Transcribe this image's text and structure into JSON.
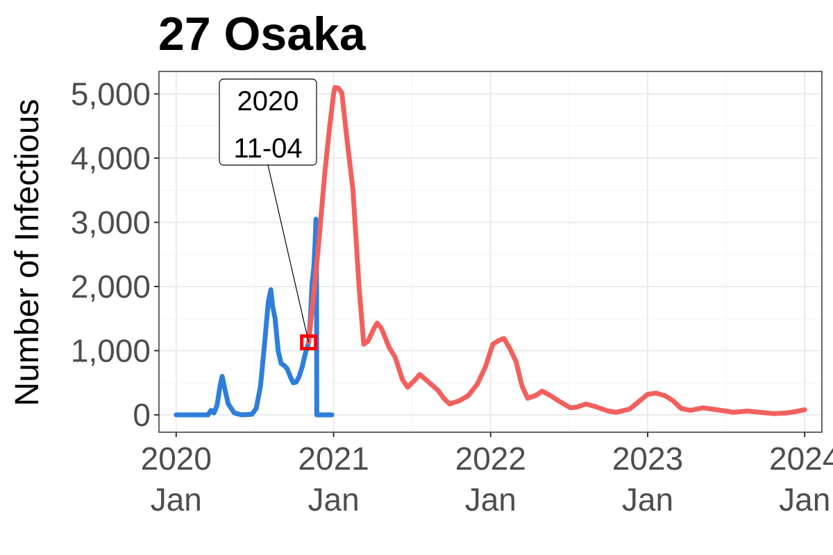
{
  "chart_data": {
    "type": "line",
    "title": "27 Osaka",
    "xlabel": "",
    "ylabel": "Number of Infectious",
    "x_axis_type": "date",
    "xlim": [
      "2019-11-22",
      "2024-02-10"
    ],
    "ylim": [
      -270,
      5350
    ],
    "y_ticks": [
      0,
      1000,
      2000,
      3000,
      4000,
      5000
    ],
    "y_tick_labels": [
      "0",
      "1,000",
      "2,000",
      "3,000",
      "4,000",
      "5,000"
    ],
    "x_ticks": [
      "2020-01-01",
      "2021-01-01",
      "2022-01-01",
      "2023-01-01",
      "2024-01-01"
    ],
    "x_tick_labels": [
      [
        "2020",
        "Jan"
      ],
      [
        "2021",
        "Jan"
      ],
      [
        "2022",
        "Jan"
      ],
      [
        "2023",
        "Jan"
      ],
      [
        "2024",
        "Jan"
      ]
    ],
    "grid": true,
    "legend": "none",
    "series": [
      {
        "color": "#2e7fdc",
        "points": [
          [
            "2020-01-01",
            0
          ],
          [
            "2020-03-15",
            0
          ],
          [
            "2020-03-22",
            70
          ],
          [
            "2020-03-29",
            30
          ],
          [
            "2020-04-05",
            150
          ],
          [
            "2020-04-12",
            450
          ],
          [
            "2020-04-17",
            600
          ],
          [
            "2020-04-22",
            440
          ],
          [
            "2020-05-01",
            170
          ],
          [
            "2020-05-15",
            30
          ],
          [
            "2020-06-01",
            0
          ],
          [
            "2020-06-25",
            10
          ],
          [
            "2020-07-05",
            100
          ],
          [
            "2020-07-15",
            450
          ],
          [
            "2020-07-25",
            1150
          ],
          [
            "2020-08-02",
            1750
          ],
          [
            "2020-08-08",
            1950
          ],
          [
            "2020-08-12",
            1700
          ],
          [
            "2020-08-18",
            1500
          ],
          [
            "2020-08-25",
            1000
          ],
          [
            "2020-09-01",
            800
          ],
          [
            "2020-09-08",
            770
          ],
          [
            "2020-09-15",
            720
          ],
          [
            "2020-09-22",
            600
          ],
          [
            "2020-09-29",
            500
          ],
          [
            "2020-10-06",
            510
          ],
          [
            "2020-10-13",
            600
          ],
          [
            "2020-10-20",
            750
          ],
          [
            "2020-10-27",
            950
          ],
          [
            "2020-11-04",
            1130
          ],
          [
            "2020-11-08",
            1500
          ],
          [
            "2020-11-12",
            2050
          ],
          [
            "2020-11-16",
            2300
          ],
          [
            "2020-11-19",
            2700
          ],
          [
            "2020-11-21",
            3050
          ],
          [
            "2020-11-22",
            3000
          ],
          [
            "2020-11-23",
            0
          ],
          [
            "2020-12-28",
            0
          ]
        ]
      },
      {
        "color": "#f2605d",
        "points": [
          [
            "2020-11-04",
            1130
          ],
          [
            "2020-11-25",
            2500
          ],
          [
            "2020-12-12",
            3800
          ],
          [
            "2020-12-23",
            4500
          ],
          [
            "2021-01-01",
            5000
          ],
          [
            "2021-01-04",
            5100
          ],
          [
            "2021-01-12",
            5090
          ],
          [
            "2021-01-20",
            5020
          ],
          [
            "2021-02-01",
            4300
          ],
          [
            "2021-02-15",
            3500
          ],
          [
            "2021-03-01",
            2000
          ],
          [
            "2021-03-12",
            1100
          ],
          [
            "2021-03-22",
            1150
          ],
          [
            "2021-04-05",
            1350
          ],
          [
            "2021-04-12",
            1430
          ],
          [
            "2021-04-22",
            1350
          ],
          [
            "2021-05-10",
            1050
          ],
          [
            "2021-05-24",
            900
          ],
          [
            "2021-06-10",
            550
          ],
          [
            "2021-06-22",
            430
          ],
          [
            "2021-07-10",
            550
          ],
          [
            "2021-07-20",
            630
          ],
          [
            "2021-08-10",
            510
          ],
          [
            "2021-09-01",
            380
          ],
          [
            "2021-09-15",
            250
          ],
          [
            "2021-09-28",
            170
          ],
          [
            "2021-10-20",
            220
          ],
          [
            "2021-11-10",
            300
          ],
          [
            "2021-12-01",
            480
          ],
          [
            "2021-12-20",
            750
          ],
          [
            "2022-01-06",
            1100
          ],
          [
            "2022-01-20",
            1160
          ],
          [
            "2022-02-01",
            1190
          ],
          [
            "2022-02-15",
            1030
          ],
          [
            "2022-03-01",
            830
          ],
          [
            "2022-03-15",
            450
          ],
          [
            "2022-03-28",
            260
          ],
          [
            "2022-04-15",
            300
          ],
          [
            "2022-05-01",
            370
          ],
          [
            "2022-05-20",
            300
          ],
          [
            "2022-06-10",
            210
          ],
          [
            "2022-07-05",
            110
          ],
          [
            "2022-07-20",
            120
          ],
          [
            "2022-08-10",
            170
          ],
          [
            "2022-09-01",
            130
          ],
          [
            "2022-10-01",
            60
          ],
          [
            "2022-10-20",
            40
          ],
          [
            "2022-11-20",
            90
          ],
          [
            "2022-12-10",
            200
          ],
          [
            "2023-01-01",
            320
          ],
          [
            "2023-01-20",
            340
          ],
          [
            "2023-02-10",
            300
          ],
          [
            "2023-03-01",
            220
          ],
          [
            "2023-03-20",
            100
          ],
          [
            "2023-04-10",
            70
          ],
          [
            "2023-05-10",
            110
          ],
          [
            "2023-06-10",
            80
          ],
          [
            "2023-07-20",
            40
          ],
          [
            "2023-08-20",
            60
          ],
          [
            "2023-09-20",
            40
          ],
          [
            "2023-10-20",
            20
          ],
          [
            "2023-11-20",
            30
          ],
          [
            "2023-12-10",
            50
          ],
          [
            "2024-01-01",
            80
          ]
        ]
      }
    ],
    "highlight": {
      "date": "2020-11-04",
      "value": 1130,
      "color": "#ff0000",
      "label_lines": [
        "2020",
        "11-04"
      ]
    }
  }
}
